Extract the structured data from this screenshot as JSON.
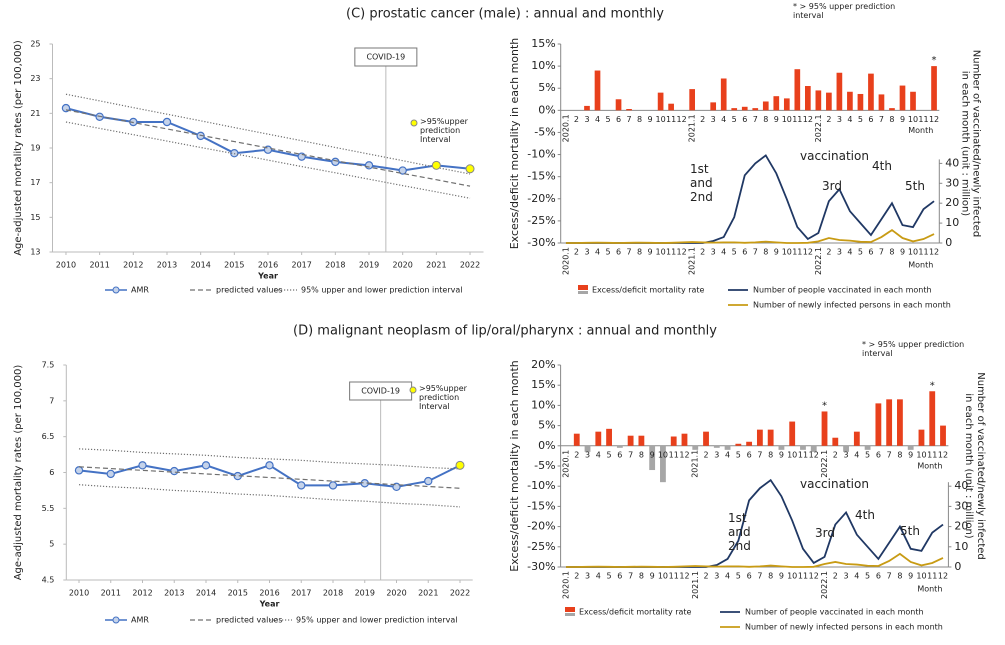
{
  "panels": [
    {
      "title": "(C) prostatic cancer (male) : annual and monthly"
    },
    {
      "title": "(D) malignant neoplasm of lip/oral/pharynx : annual and monthly"
    }
  ],
  "chart_data": [
    {
      "type": "line",
      "x": [
        2010,
        2011,
        2012,
        2013,
        2014,
        2015,
        2016,
        2017,
        2018,
        2019,
        2020,
        2021,
        2022
      ],
      "xlim": [
        2009.6,
        2022.4
      ],
      "x_label": "Year",
      "y_label": "Age-adjusted mortality rates (per 100,000)",
      "ylim": [
        13,
        25
      ],
      "yticks": [
        13,
        15,
        17,
        19,
        21,
        23,
        25
      ],
      "series": [
        {
          "name": "AMR",
          "color": "#4472c4",
          "marker_color": "#c5d3ea",
          "dash": "solid",
          "values": [
            21.3,
            20.8,
            20.5,
            20.5,
            19.7,
            18.7,
            18.9,
            18.5,
            18.2,
            18.0,
            17.7,
            18.0,
            17.8
          ]
        },
        {
          "name": "predicted values",
          "color": "#707070",
          "dash": "dashed",
          "values": [
            21.2,
            20.83,
            20.47,
            20.1,
            19.73,
            19.37,
            19.0,
            18.63,
            18.27,
            17.9,
            17.53,
            17.17,
            16.8
          ]
        },
        {
          "name": "95% upper and lower prediction interval",
          "color": "#707070",
          "dash": "dotted",
          "values": [
            22.1,
            21.72,
            21.33,
            20.95,
            20.57,
            20.18,
            19.8,
            19.42,
            19.03,
            18.65,
            18.27,
            17.88,
            17.5
          ],
          "lower": [
            20.5,
            20.13,
            19.77,
            19.4,
            19.03,
            18.67,
            18.3,
            17.93,
            17.57,
            17.2,
            16.83,
            16.47,
            16.1
          ]
        },
        {
          "name": ">95%upper prediction Interval",
          "color": "#ffff00",
          "dash": "none",
          "values": [
            null,
            null,
            null,
            null,
            null,
            null,
            null,
            null,
            null,
            null,
            null,
            18.0,
            17.8
          ]
        }
      ],
      "annotation": {
        "text": "COVID-19",
        "x": 2019.5
      }
    },
    {
      "type": "bar_line",
      "categories": [
        "2020.1",
        "2",
        "3",
        "4",
        "5",
        "6",
        "7",
        "8",
        "9",
        "10",
        "11",
        "12",
        "2021.1",
        "2",
        "3",
        "4",
        "5",
        "6",
        "7",
        "8",
        "9",
        "10",
        "11",
        "12",
        "2022.1",
        "2",
        "3",
        "4",
        "5",
        "6",
        "7",
        "8",
        "9",
        "10",
        "11",
        "12"
      ],
      "x_label": "Month",
      "y_label": "Excess/deficit mortality in each month",
      "y2_label": "Number of vaccinated/newly infected in each month (unit : million)",
      "ylim": [
        -30,
        15
      ],
      "yticks": [
        {
          "value": 15,
          "label": "15%"
        },
        {
          "value": 10,
          "label": "10%"
        },
        {
          "value": 5,
          "label": "5%"
        },
        {
          "value": 0,
          "label": "0%"
        },
        {
          "value": -5,
          "label": "-5%"
        },
        {
          "value": -10,
          "label": "-10%"
        },
        {
          "value": -15,
          "label": "-15%"
        },
        {
          "value": -20,
          "label": "-20%"
        },
        {
          "value": -25,
          "label": "-25%"
        },
        {
          "value": -30,
          "label": "-30%"
        }
      ],
      "y2lim": [
        0,
        100
      ],
      "y2ticks": [
        0,
        10,
        20,
        30,
        40
      ],
      "series": [
        {
          "name": "Excess/deficit mortality rate",
          "type": "bar",
          "color": "#e8401c",
          "negative_color": "#a6a6a6",
          "values": [
            0,
            0,
            1,
            9,
            0,
            2.5,
            0.3,
            0,
            0,
            4,
            1.5,
            0,
            4.8,
            0,
            1.8,
            7.2,
            0.5,
            0.8,
            0.5,
            2,
            3.2,
            2.7,
            9.3,
            5.5,
            4.5,
            4,
            8.5,
            4.2,
            3.7,
            8.3,
            3.6,
            0.5,
            5.6,
            4.2,
            0,
            10
          ]
        },
        {
          "name": "Number of people vaccinated in each month",
          "type": "line",
          "axis": "y2",
          "color": "#203864",
          "values": [
            0,
            0,
            0,
            0,
            0,
            0,
            0,
            0,
            0,
            0,
            0,
            0,
            0,
            0,
            1,
            3,
            13,
            34,
            40,
            44,
            35,
            22,
            8,
            2,
            5,
            21,
            27,
            16,
            10,
            4,
            12,
            20,
            9,
            8,
            17,
            21
          ]
        },
        {
          "name": "Number of newly infected persons in each month",
          "type": "line",
          "axis": "y2",
          "color": "#c89b14",
          "values": [
            0,
            0,
            0.1,
            0.2,
            0.1,
            0,
            0.1,
            0.2,
            0.1,
            0,
            0.1,
            0.3,
            0.5,
            0.3,
            0.2,
            0.3,
            0.3,
            0.1,
            0.3,
            0.7,
            0.3,
            0,
            0,
            0.1,
            0.8,
            2.5,
            1.5,
            1.2,
            0.6,
            0.5,
            3,
            6.5,
            2.5,
            0.8,
            2,
            4.5
          ]
        }
      ],
      "annotations": [
        "vaccination",
        "1st and 2nd",
        "3rd",
        "4th",
        "5th"
      ],
      "note": "* > 95% upper prediction interval",
      "star": "*",
      "star_categories": [
        35
      ]
    },
    {
      "type": "line",
      "x": [
        2010,
        2011,
        2012,
        2013,
        2014,
        2015,
        2016,
        2017,
        2018,
        2019,
        2020,
        2021,
        2022
      ],
      "xlim": [
        2009.6,
        2022.4
      ],
      "x_label": "Year",
      "y_label": "Age-adjusted mortality rates (per 100,000)",
      "ylim": [
        4.5,
        7.5
      ],
      "yticks": [
        4.5,
        5,
        5.5,
        6,
        6.5,
        7,
        7.5
      ],
      "series": [
        {
          "name": "AMR",
          "color": "#4472c4",
          "marker_color": "#c5d3ea",
          "dash": "solid",
          "values": [
            6.03,
            5.98,
            6.1,
            6.02,
            6.1,
            5.95,
            6.1,
            5.82,
            5.82,
            5.85,
            5.8,
            5.88,
            6.1
          ]
        },
        {
          "name": "predicted values",
          "color": "#707070",
          "dash": "dashed",
          "values": [
            6.08,
            6.055,
            6.03,
            6.005,
            5.98,
            5.955,
            5.93,
            5.905,
            5.88,
            5.855,
            5.83,
            5.805,
            5.78
          ]
        },
        {
          "name": "95% upper and lower prediction interval",
          "color": "#707070",
          "dash": "dotted",
          "values": [
            6.33,
            6.31,
            6.28,
            6.26,
            6.24,
            6.21,
            6.19,
            6.17,
            6.14,
            6.12,
            6.1,
            6.07,
            6.05
          ],
          "lower": [
            5.83,
            5.8,
            5.78,
            5.75,
            5.73,
            5.7,
            5.68,
            5.65,
            5.62,
            5.6,
            5.57,
            5.55,
            5.52
          ]
        },
        {
          "name": ">95%upper prediction Interval",
          "color": "#ffff00",
          "dash": "none",
          "values": [
            null,
            null,
            null,
            null,
            null,
            null,
            null,
            null,
            null,
            null,
            null,
            null,
            6.1
          ]
        }
      ],
      "annotation": {
        "text": "COVID-19",
        "x": 2019.5
      }
    },
    {
      "type": "bar_line",
      "categories": [
        "2020.1",
        "2",
        "3",
        "4",
        "5",
        "6",
        "7",
        "8",
        "9",
        "10",
        "11",
        "12",
        "2021.1",
        "2",
        "3",
        "4",
        "5",
        "6",
        "7",
        "8",
        "9",
        "10",
        "11",
        "12",
        "2022.1",
        "2",
        "3",
        "4",
        "5",
        "6",
        "7",
        "8",
        "9",
        "10",
        "11",
        "12"
      ],
      "x_label": "Month",
      "y_label": "Excess/deficit mortality in each month",
      "y2_label": "Number of vaccinated/newly infected in each month (unit : million)",
      "ylim": [
        -30,
        20
      ],
      "yticks": [
        {
          "value": 20,
          "label": "20%"
        },
        {
          "value": 15,
          "label": "15%"
        },
        {
          "value": 10,
          "label": "10%"
        },
        {
          "value": 5,
          "label": "5%"
        },
        {
          "value": 0,
          "label": "0%"
        },
        {
          "value": -5,
          "label": "-5%"
        },
        {
          "value": -10,
          "label": "-10%"
        },
        {
          "value": -15,
          "label": "-15%"
        },
        {
          "value": -20,
          "label": "-20%"
        },
        {
          "value": -25,
          "label": "-25%"
        },
        {
          "value": -30,
          "label": "-30%"
        }
      ],
      "y2lim": [
        0,
        100
      ],
      "y2ticks": [
        0,
        10,
        20,
        30,
        40
      ],
      "series": [
        {
          "name": "Excess/deficit mortality rate",
          "type": "bar",
          "color": "#e8401c",
          "negative_color": "#a6a6a6",
          "values": [
            0,
            3,
            -1.5,
            3.5,
            4.2,
            -0.5,
            2.5,
            2.5,
            -6,
            -9,
            2.3,
            3,
            -1,
            3.5,
            -0.5,
            -1,
            0.5,
            1,
            4,
            4,
            -1,
            6,
            -1,
            -1.5,
            8.5,
            2,
            -1.5,
            3.5,
            -1,
            10.5,
            11.5,
            11.5,
            -1,
            4,
            13.5,
            5
          ]
        },
        {
          "name": "Number of people vaccinated in each month",
          "type": "line",
          "axis": "y2",
          "color": "#203864",
          "values": [
            0,
            0,
            0,
            0,
            0,
            0,
            0,
            0,
            0,
            0,
            0,
            0,
            0,
            0,
            1,
            4,
            13,
            33,
            39,
            43,
            35,
            23,
            9,
            2,
            5,
            21,
            27,
            16,
            10,
            4,
            12,
            20,
            9,
            8,
            17,
            21
          ]
        },
        {
          "name": "Number of newly infected persons in each month",
          "type": "line",
          "axis": "y2",
          "color": "#c89b14",
          "values": [
            0,
            0,
            0.1,
            0.2,
            0.1,
            0,
            0.1,
            0.2,
            0.1,
            0,
            0.1,
            0.3,
            0.5,
            0.3,
            0.2,
            0.3,
            0.3,
            0.1,
            0.3,
            0.7,
            0.3,
            0,
            0,
            0.1,
            1.5,
            2.5,
            1.5,
            1.2,
            0.6,
            0.5,
            3,
            6.5,
            2.5,
            0.8,
            2,
            4.5
          ]
        }
      ],
      "annotations": [
        "vaccination",
        "1st and 2nd",
        "3rd",
        "4th",
        "5th"
      ],
      "note": "* > 95% upper prediction interval",
      "star": "*",
      "star_categories": [
        24,
        34
      ]
    }
  ]
}
